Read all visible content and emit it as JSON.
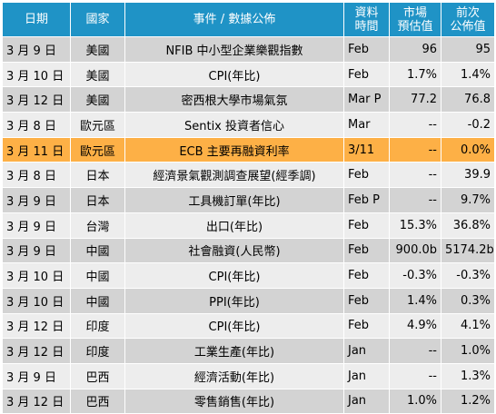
{
  "headers": {
    "date": "日期",
    "country": "國家",
    "event": "事件 / 數據公佈",
    "period": "資料\n時間",
    "forecast": "市場\n預估值",
    "previous": "前次\n公佈值"
  },
  "rows": [
    {
      "date": "3 月 9 日",
      "country": "美國",
      "event": "NFIB 中小型企業樂觀指數",
      "period": "Feb",
      "forecast": "96",
      "previous": "95"
    },
    {
      "date": "3 月 10 日",
      "country": "美國",
      "event": "CPI(年比)",
      "period": "Feb",
      "forecast": "1.7%",
      "previous": "1.4%"
    },
    {
      "date": "3 月 12 日",
      "country": "美國",
      "event": "密西根大學市場氣氛",
      "period": "Mar P",
      "forecast": "77.2",
      "previous": "76.8"
    },
    {
      "date": "3 月 8 日",
      "country": "歐元區",
      "event": "Sentix 投資者信心",
      "period": "Mar",
      "forecast": "--",
      "previous": "-0.2"
    },
    {
      "date": "3 月 11 日",
      "country": "歐元區",
      "event": "ECB 主要再融資利率",
      "period": "3/11",
      "forecast": "--",
      "previous": "0.0%"
    },
    {
      "date": "3 月 8 日",
      "country": "日本",
      "event": "經濟景氣觀測調查展望(經季調)",
      "period": "Feb",
      "forecast": "--",
      "previous": "39.9"
    },
    {
      "date": "3 月 9 日",
      "country": "日本",
      "event": "工具機訂單(年比)",
      "period": "Feb P",
      "forecast": "--",
      "previous": "9.7%"
    },
    {
      "date": "3 月 9 日",
      "country": "台灣",
      "event": "出口(年比)",
      "period": "Feb",
      "forecast": "15.3%",
      "previous": "36.8%"
    },
    {
      "date": "3 月 9 日",
      "country": "中國",
      "event": "社會融資(人民幣)",
      "period": "Feb",
      "forecast": "900.0b",
      "previous": "5174.2b"
    },
    {
      "date": "3 月 10 日",
      "country": "中國",
      "event": "CPI(年比)",
      "period": "Feb",
      "forecast": "-0.3%",
      "previous": "-0.3%"
    },
    {
      "date": "3 月 10 日",
      "country": "中國",
      "event": "PPI(年比)",
      "period": "Feb",
      "forecast": "1.4%",
      "previous": "0.3%"
    },
    {
      "date": "3 月 12 日",
      "country": "印度",
      "event": "CPI(年比)",
      "period": "Feb",
      "forecast": "4.9%",
      "previous": "4.1%"
    },
    {
      "date": "3 月 12 日",
      "country": "印度",
      "event": "工業生產(年比)",
      "period": "Jan",
      "forecast": "--",
      "previous": "1.0%"
    },
    {
      "date": "3 月 9 日",
      "country": "巴西",
      "event": "經濟活動(年比)",
      "period": "Jan",
      "forecast": "--",
      "previous": "1.3%"
    },
    {
      "date": "3 月 12 日",
      "country": "巴西",
      "event": "零售銷售(年比)",
      "period": "Jan",
      "forecast": "1.0%",
      "previous": "1.2%"
    }
  ],
  "highlight_row": 4,
  "colors": {
    "header": "#1f93c6",
    "row_dark": "#d3d3d3",
    "row_light": "#ededed",
    "highlight": "#fdb046"
  }
}
